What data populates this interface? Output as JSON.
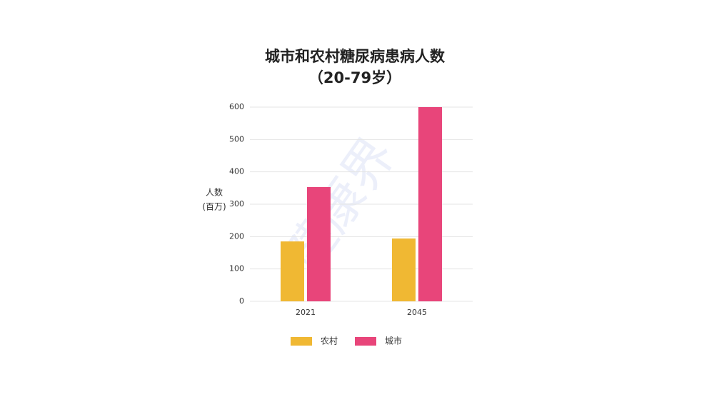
{
  "chart_data": {
    "type": "bar",
    "title": "城市和农村糖尿病患病人数",
    "subtitle": "（20-79岁）",
    "ylabel": [
      "人数",
      "(百万)"
    ],
    "watermark": "健康界",
    "categories": [
      "2021",
      "2045"
    ],
    "series": [
      {
        "name": "农村",
        "color": "#f0b833",
        "values": [
          185,
          194
        ]
      },
      {
        "name": "城市",
        "color": "#e8457a",
        "values": [
          353,
          600
        ]
      }
    ],
    "ylim": [
      0,
      600
    ],
    "yticks": [
      0,
      100,
      200,
      300,
      400,
      500,
      600
    ],
    "grid": true,
    "legend": "bottom"
  }
}
